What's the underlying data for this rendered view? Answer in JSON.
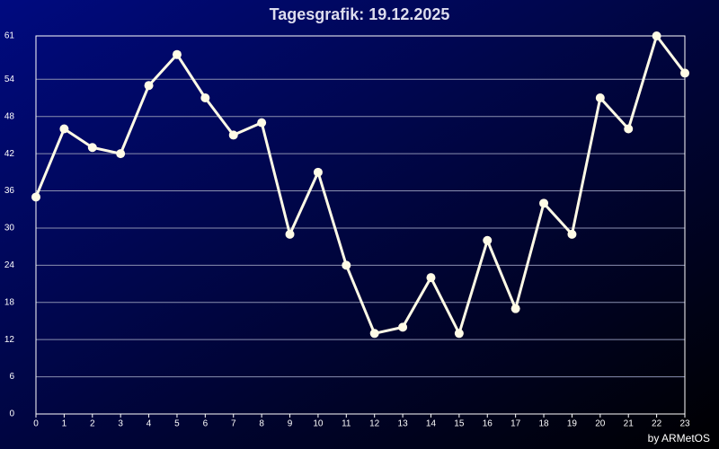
{
  "chart_data": {
    "type": "line",
    "title": "Tagesgrafik: 19.12.2025",
    "footer": "by ARMetOS",
    "x": [
      0,
      1,
      2,
      3,
      4,
      5,
      6,
      7,
      8,
      9,
      10,
      11,
      12,
      13,
      14,
      15,
      16,
      17,
      18,
      19,
      20,
      21,
      22,
      23
    ],
    "series": [
      {
        "color": "#fffbe6",
        "values": [
          35,
          46,
          43,
          42,
          53,
          58,
          51,
          45,
          47,
          29,
          39,
          24,
          13,
          14,
          22,
          13,
          28,
          17,
          34,
          29,
          51,
          46,
          61,
          55
        ]
      }
    ],
    "xlim": [
      0,
      23
    ],
    "xticks": [
      0,
      1,
      2,
      3,
      4,
      5,
      6,
      7,
      8,
      9,
      10,
      11,
      12,
      13,
      14,
      15,
      16,
      17,
      18,
      19,
      20,
      21,
      22,
      23
    ],
    "ylim": [
      0,
      61
    ],
    "yticks": [
      0,
      6,
      12,
      18,
      24,
      30,
      36,
      42,
      48,
      54,
      61
    ],
    "grid": true
  }
}
